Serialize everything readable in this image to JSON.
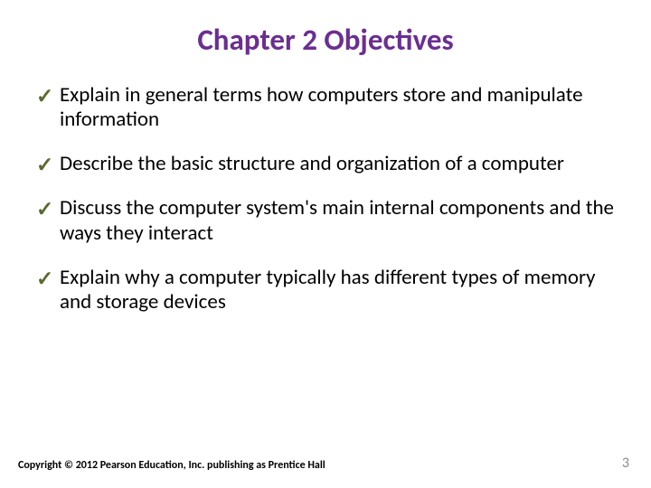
{
  "title": {
    "text": "Chapter 2 Objectives",
    "color": "#6b2e91",
    "fontsize": 33
  },
  "check_color": "#5a6b2f",
  "body_fontsize": 23,
  "objectives": [
    "Explain in general terms how computers store and manipulate information",
    "Describe the basic structure and organization of a computer",
    "Discuss the computer system's main internal components and the ways they interact",
    "Explain why a computer typically has different types of memory and storage devices"
  ],
  "footer": {
    "copyright": "Copyright © 2012 Pearson Education, Inc. publishing as Prentice Hall",
    "copyright_fontsize": 12,
    "page_number": "3",
    "page_number_fontsize": 16,
    "page_number_color": "#8a8a8a"
  },
  "background_color": "#ffffff"
}
